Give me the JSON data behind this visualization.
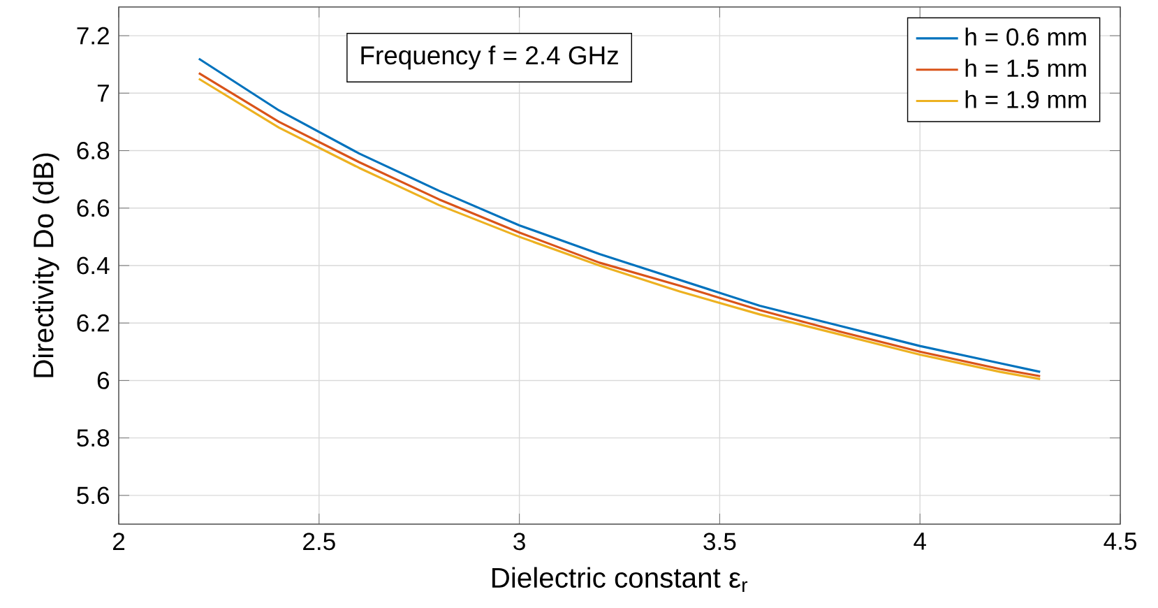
{
  "chart_data": {
    "type": "line",
    "xlabel": "Dielectric constant  ε$_{r}$",
    "ylabel": "Directivity Do  (dB)",
    "annotations": [
      "Frequency f = 2.4 GHz"
    ],
    "x": [
      2.2,
      2.4,
      2.6,
      2.8,
      3.0,
      3.2,
      3.4,
      3.6,
      3.8,
      4.0,
      4.2,
      4.3
    ],
    "series": [
      {
        "name": "h = 0.6 mm",
        "color": "#0072bd",
        "values": [
          7.12,
          6.94,
          6.79,
          6.66,
          6.54,
          6.44,
          6.35,
          6.26,
          6.19,
          6.12,
          6.06,
          6.03
        ]
      },
      {
        "name": "h = 1.5 mm",
        "color": "#d95319",
        "values": [
          7.07,
          6.9,
          6.76,
          6.63,
          6.515,
          6.41,
          6.33,
          6.245,
          6.17,
          6.1,
          6.04,
          6.015
        ]
      },
      {
        "name": "h = 1.9 mm",
        "color": "#edb120",
        "values": [
          7.05,
          6.88,
          6.74,
          6.61,
          6.5,
          6.4,
          6.31,
          6.23,
          6.16,
          6.09,
          6.03,
          6.005
        ]
      }
    ],
    "xlim": [
      2,
      4.5
    ],
    "xticks": [
      2,
      2.5,
      3,
      3.5,
      4,
      4.5
    ],
    "ylim": [
      5.5,
      7.3
    ],
    "yticks": [
      5.6,
      5.8,
      6,
      6.2,
      6.4,
      6.6,
      6.8,
      7,
      7.2
    ],
    "grid": true,
    "legend": "top right",
    "marker": "none",
    "line_style": "solid"
  }
}
